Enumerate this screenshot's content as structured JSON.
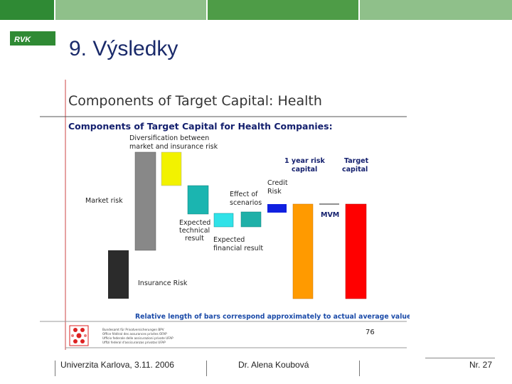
{
  "header": {
    "logo_text": "RVK",
    "slide_title": "9. Výsledky",
    "colors": {
      "dark_green": "#2f8a34",
      "mid_green": "#4e9c47",
      "light_green": "#8fc08a"
    }
  },
  "embedded_slide": {
    "title": "Components of Target Capital: Health",
    "subtitle": "Components of Target Capital for Health Companies:",
    "labels": {
      "diversification": [
        "Diversification between",
        "market and insurance risk"
      ],
      "market_risk": "Market risk",
      "insurance_risk": "Insurance Risk",
      "expected_technical": [
        "Expected",
        "technical",
        "result"
      ],
      "expected_financial": [
        "Expected",
        "financial result"
      ],
      "effect_scenarios": [
        "Effect of",
        "scenarios"
      ],
      "credit_risk": [
        "Credit",
        "Risk"
      ],
      "one_year_risk": [
        "1 year risk",
        "capital"
      ],
      "target_capital": [
        "Target",
        "capital"
      ],
      "mvm": "MVM"
    },
    "note": "Relative length of bars correspond approximately to actual average values",
    "page_number": "76",
    "office_lines": [
      "Bundesamt für Privatversicherungen BPV",
      "Office fédéral des assurances privées OFAP",
      "Ufficio federale delle assicurazioni private UFAP",
      "Uffizi federal d'assicuranzas privatas UFAP"
    ]
  },
  "footer": {
    "university": "Univerzita Karlova, 3.11. 2006",
    "author": "Dr. Alena Koubová",
    "page": "Nr. 27"
  }
}
